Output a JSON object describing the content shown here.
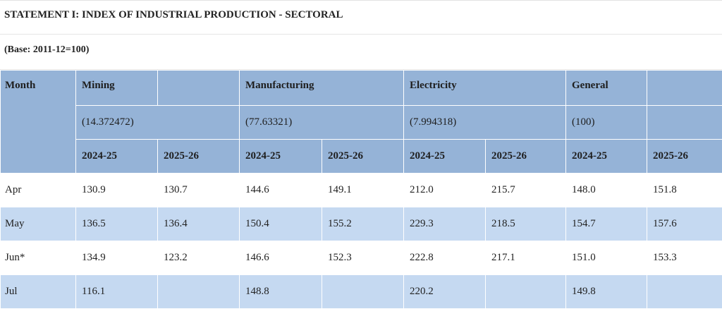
{
  "title": "STATEMENT I: INDEX OF INDUSTRIAL PRODUCTION - SECTORAL",
  "base": "(Base: 2011-12=100)",
  "columns": {
    "month": "Month",
    "sectors": [
      {
        "name": "Mining",
        "weight": "(14.372472)"
      },
      {
        "name": "Manufacturing",
        "weight": "(77.63321)"
      },
      {
        "name": "Electricity",
        "weight": "(7.994318)"
      },
      {
        "name": "General",
        "weight": "(100)"
      }
    ],
    "years": [
      "2024-25",
      "2025-26"
    ]
  },
  "rows": [
    {
      "month": "Apr",
      "values": [
        "130.9",
        "130.7",
        "144.6",
        "149.1",
        "212.0",
        "215.7",
        "148.0",
        "151.8"
      ]
    },
    {
      "month": "May",
      "values": [
        "136.5",
        "136.4",
        "150.4",
        "155.2",
        "229.3",
        "218.5",
        "154.7",
        "157.6"
      ]
    },
    {
      "month": "Jun*",
      "values": [
        "134.9",
        "123.2",
        "146.6",
        "152.3",
        "222.8",
        "217.1",
        "151.0",
        "153.3"
      ]
    },
    {
      "month": "Jul",
      "values": [
        "116.1",
        "",
        "148.8",
        "",
        "220.2",
        "",
        "149.8",
        ""
      ]
    }
  ]
}
